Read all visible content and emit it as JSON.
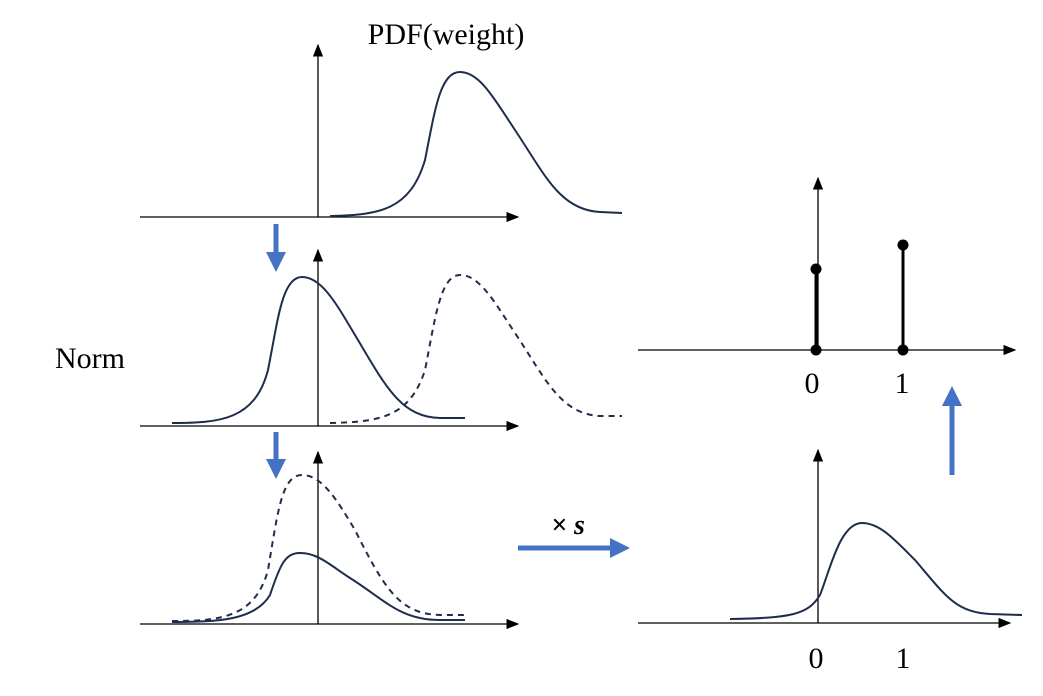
{
  "title": "PDF(weight)",
  "norm_label": "Norm",
  "scale_label": "× s",
  "bottom_right_ticks": [
    "0",
    "1"
  ],
  "top_right_ticks": [
    "0",
    "1"
  ],
  "colors": {
    "arrow": "#4472C4",
    "curve": "#1f2d4d"
  }
}
